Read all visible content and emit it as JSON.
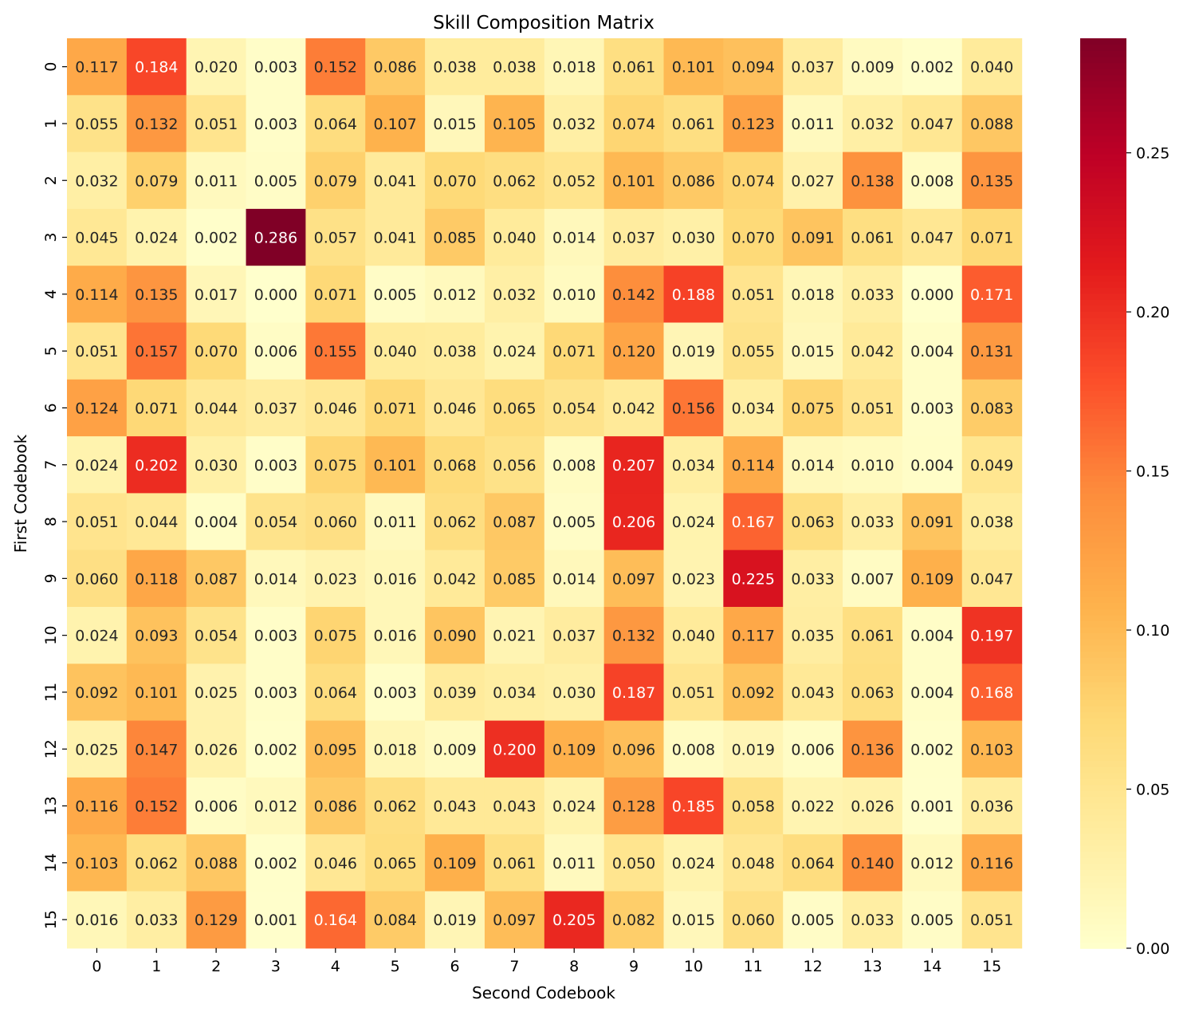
{
  "chart_data": {
    "type": "heatmap",
    "title": "Skill Composition Matrix",
    "xlabel": "Second Codebook",
    "ylabel": "First Codebook",
    "x_categories": [
      "0",
      "1",
      "2",
      "3",
      "4",
      "5",
      "6",
      "7",
      "8",
      "9",
      "10",
      "11",
      "12",
      "13",
      "14",
      "15"
    ],
    "y_categories": [
      "0",
      "1",
      "2",
      "3",
      "4",
      "5",
      "6",
      "7",
      "8",
      "9",
      "10",
      "11",
      "12",
      "13",
      "14",
      "15"
    ],
    "values": [
      [
        0.117,
        0.184,
        0.02,
        0.003,
        0.152,
        0.086,
        0.038,
        0.038,
        0.018,
        0.061,
        0.101,
        0.094,
        0.037,
        0.009,
        0.002,
        0.04
      ],
      [
        0.055,
        0.132,
        0.051,
        0.003,
        0.064,
        0.107,
        0.015,
        0.105,
        0.032,
        0.074,
        0.061,
        0.123,
        0.011,
        0.032,
        0.047,
        0.088
      ],
      [
        0.032,
        0.079,
        0.011,
        0.005,
        0.079,
        0.041,
        0.07,
        0.062,
        0.052,
        0.101,
        0.086,
        0.074,
        0.027,
        0.138,
        0.008,
        0.135
      ],
      [
        0.045,
        0.024,
        0.002,
        0.286,
        0.057,
        0.041,
        0.085,
        0.04,
        0.014,
        0.037,
        0.03,
        0.07,
        0.091,
        0.061,
        0.047,
        0.071
      ],
      [
        0.114,
        0.135,
        0.017,
        0.0,
        0.071,
        0.005,
        0.012,
        0.032,
        0.01,
        0.142,
        0.188,
        0.051,
        0.018,
        0.033,
        0.0,
        0.171
      ],
      [
        0.051,
        0.157,
        0.07,
        0.006,
        0.155,
        0.04,
        0.038,
        0.024,
        0.071,
        0.12,
        0.019,
        0.055,
        0.015,
        0.042,
        0.004,
        0.131
      ],
      [
        0.124,
        0.071,
        0.044,
        0.037,
        0.046,
        0.071,
        0.046,
        0.065,
        0.054,
        0.042,
        0.156,
        0.034,
        0.075,
        0.051,
        0.003,
        0.083
      ],
      [
        0.024,
        0.202,
        0.03,
        0.003,
        0.075,
        0.101,
        0.068,
        0.056,
        0.008,
        0.207,
        0.034,
        0.114,
        0.014,
        0.01,
        0.004,
        0.049
      ],
      [
        0.051,
        0.044,
        0.004,
        0.054,
        0.06,
        0.011,
        0.062,
        0.087,
        0.005,
        0.206,
        0.024,
        0.167,
        0.063,
        0.033,
        0.091,
        0.038
      ],
      [
        0.06,
        0.118,
        0.087,
        0.014,
        0.023,
        0.016,
        0.042,
        0.085,
        0.014,
        0.097,
        0.023,
        0.225,
        0.033,
        0.007,
        0.109,
        0.047
      ],
      [
        0.024,
        0.093,
        0.054,
        0.003,
        0.075,
        0.016,
        0.09,
        0.021,
        0.037,
        0.132,
        0.04,
        0.117,
        0.035,
        0.061,
        0.004,
        0.197
      ],
      [
        0.092,
        0.101,
        0.025,
        0.003,
        0.064,
        0.003,
        0.039,
        0.034,
        0.03,
        0.187,
        0.051,
        0.092,
        0.043,
        0.063,
        0.004,
        0.168
      ],
      [
        0.025,
        0.147,
        0.026,
        0.002,
        0.095,
        0.018,
        0.009,
        0.2,
        0.109,
        0.096,
        0.008,
        0.019,
        0.006,
        0.136,
        0.002,
        0.103
      ],
      [
        0.116,
        0.152,
        0.006,
        0.012,
        0.086,
        0.062,
        0.043,
        0.043,
        0.024,
        0.128,
        0.185,
        0.058,
        0.022,
        0.026,
        0.001,
        0.036
      ],
      [
        0.103,
        0.062,
        0.088,
        0.002,
        0.046,
        0.065,
        0.109,
        0.061,
        0.011,
        0.05,
        0.024,
        0.048,
        0.064,
        0.14,
        0.012,
        0.116
      ],
      [
        0.016,
        0.033,
        0.129,
        0.001,
        0.164,
        0.084,
        0.019,
        0.097,
        0.205,
        0.082,
        0.015,
        0.06,
        0.005,
        0.033,
        0.005,
        0.051
      ]
    ],
    "color_range": [
      0,
      0.286
    ],
    "colormap": "YlOrRd",
    "colorbar_ticks": [
      "0.00",
      "0.05",
      "0.10",
      "0.15",
      "0.20",
      "0.25"
    ],
    "text_light_color": "#ffffff",
    "text_dark_color": "#262626",
    "grid": false
  }
}
